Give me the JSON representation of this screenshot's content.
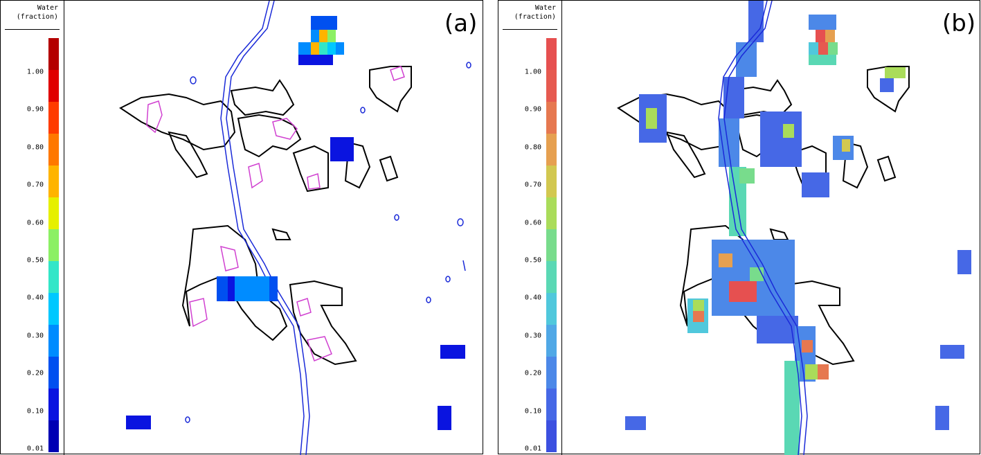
{
  "legend": {
    "title_line1": "Water",
    "title_line2": "(fraction)",
    "ticks": [
      "1.00",
      "0.90",
      "0.80",
      "0.70",
      "0.60",
      "0.50",
      "0.40",
      "0.30",
      "0.20",
      "0.10",
      "0.01"
    ]
  },
  "panels": [
    {
      "label": "(a)"
    },
    {
      "label": "(b)"
    }
  ],
  "colors": {
    "bins_a": [
      "#0000b4",
      "#0a14e0",
      "#0050f0",
      "#008cff",
      "#00c8ff",
      "#32e6c8",
      "#8cf064",
      "#e6f000",
      "#ffb400",
      "#ff7800",
      "#ff3c00",
      "#e00000",
      "#b40000"
    ],
    "bins_b": [
      "#3c50e0",
      "#4668e6",
      "#4c88e8",
      "#50a8e6",
      "#50c8dc",
      "#5ad8b4",
      "#78dc8c",
      "#aadc5a",
      "#d2c850",
      "#e6a050",
      "#e67850",
      "#e65a50",
      "#e65050"
    ],
    "coast": "#000000",
    "river": "#1a2ad8",
    "lake_outline": "#d040d0"
  }
}
